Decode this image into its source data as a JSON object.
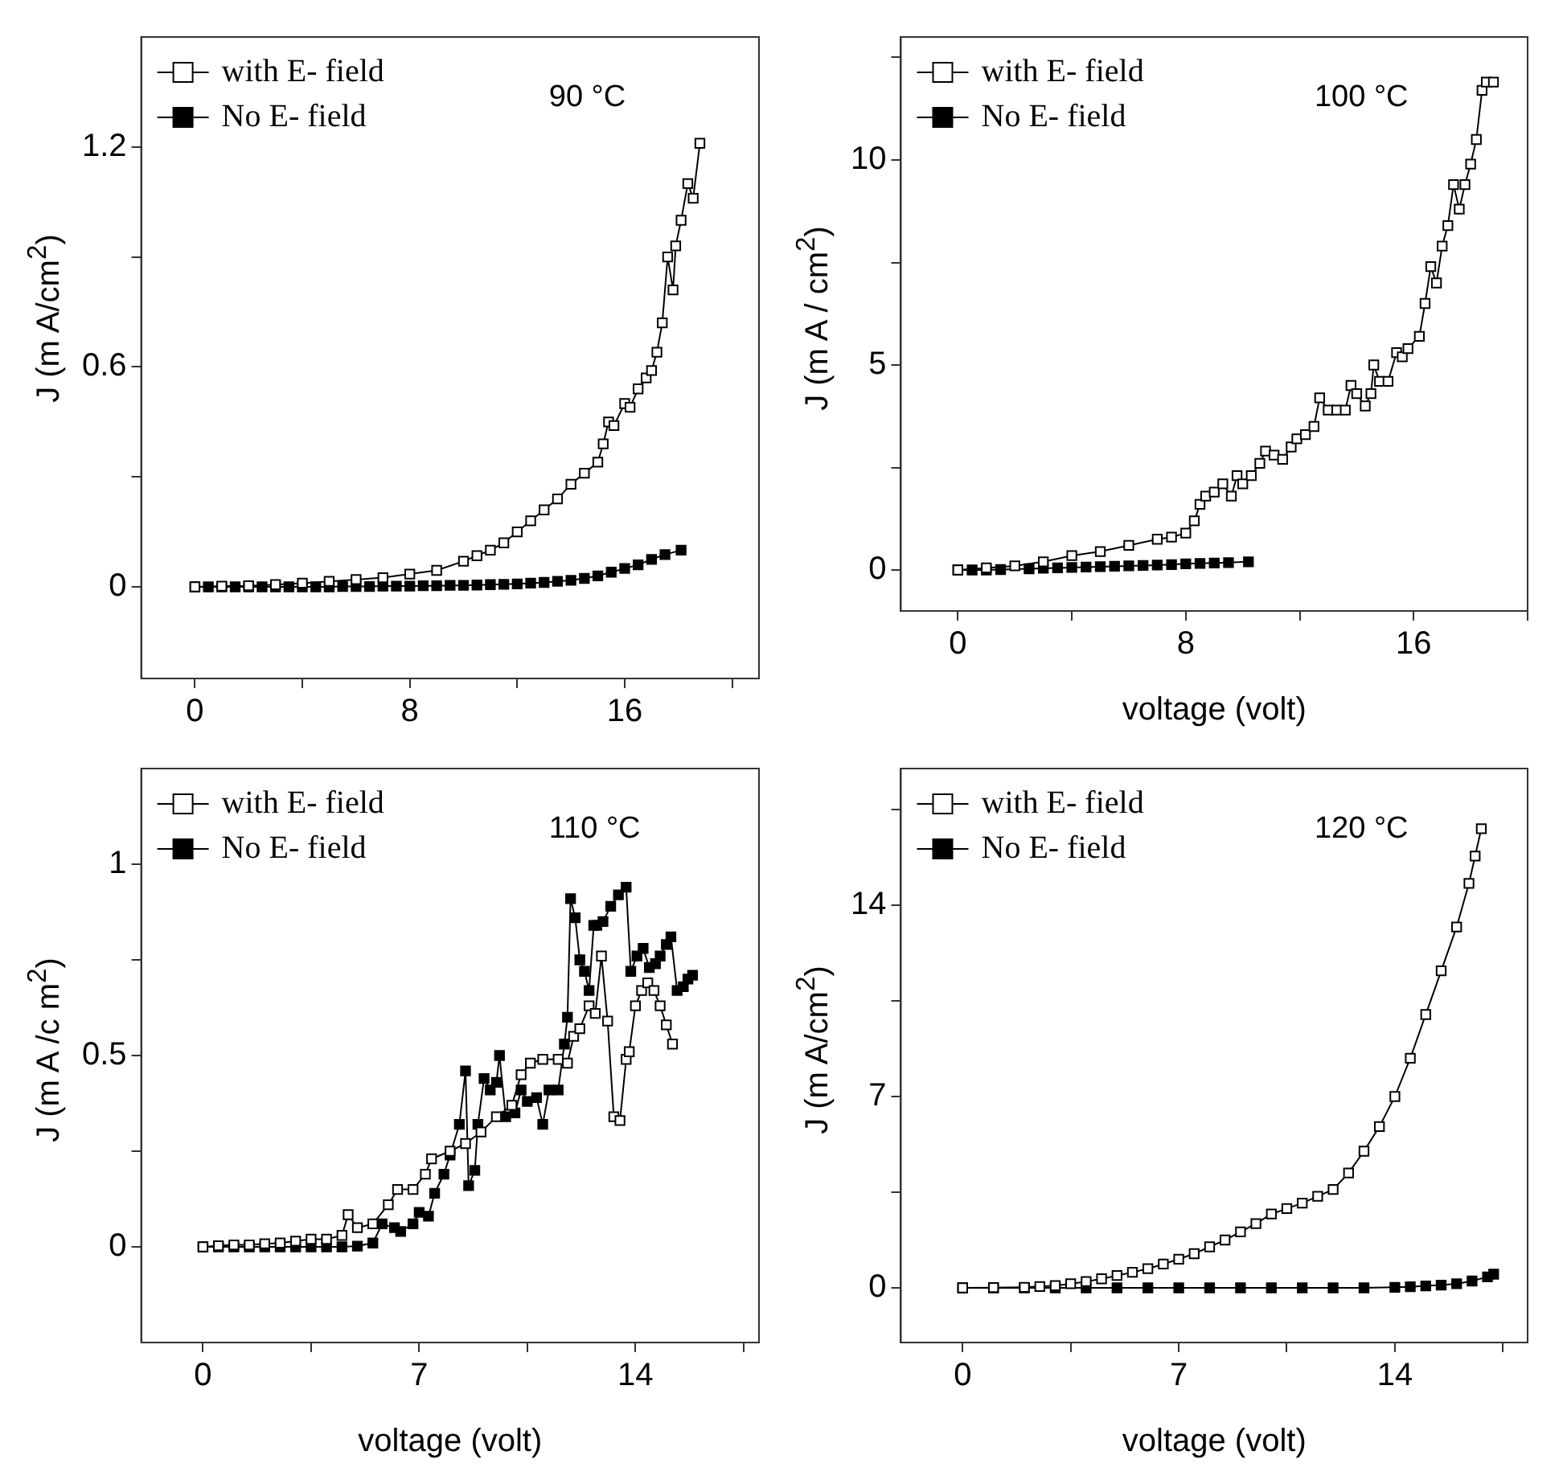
{
  "chart_data": [
    {
      "type": "line",
      "ylabel": "J (m A/cm$^{2}$)",
      "annotations": [
        "90 °C"
      ],
      "legend": "top left",
      "marker": "square",
      "line_style": "solid",
      "xlim": [
        -2,
        21
      ],
      "xticks": [
        0,
        {
          "value": 4,
          "label": null
        },
        8,
        {
          "value": 12,
          "label": null
        },
        16,
        {
          "value": 20,
          "label": null
        }
      ],
      "ylim": [
        -0.25,
        1.5
      ],
      "yticks": [
        0,
        {
          "value": 0.3,
          "label": null
        },
        0.6,
        {
          "value": 0.9,
          "label": null
        },
        1.2
      ],
      "series": [
        {
          "name": "with E- field",
          "color": "#ffffff",
          "x": [
            0,
            1,
            2,
            3,
            4,
            5,
            6,
            7,
            8,
            9,
            10,
            10.5,
            11,
            11.5,
            12,
            12.5,
            13,
            13.5,
            14,
            14.5,
            15,
            15.2,
            15.4,
            15.6,
            16,
            16.2,
            16.5,
            16.8,
            17,
            17.2,
            17.4,
            17.6,
            17.8,
            17.9,
            18.1,
            18.35,
            18.55,
            18.8
          ],
          "values": [
            0,
            0.002,
            0.003,
            0.006,
            0.01,
            0.015,
            0.02,
            0.025,
            0.035,
            0.045,
            0.07,
            0.085,
            0.1,
            0.12,
            0.15,
            0.18,
            0.21,
            0.24,
            0.28,
            0.31,
            0.34,
            0.39,
            0.45,
            0.44,
            0.5,
            0.49,
            0.54,
            0.57,
            0.59,
            0.64,
            0.72,
            0.9,
            0.81,
            0.93,
            1.0,
            1.1,
            1.06,
            1.21
          ]
        },
        {
          "name": "No E- field",
          "color": "#000000",
          "x": [
            0,
            0.5,
            1,
            1.5,
            2,
            2.5,
            3,
            3.5,
            4,
            4.5,
            5,
            5.5,
            6,
            6.5,
            7,
            7.5,
            8,
            8.5,
            9,
            9.5,
            10,
            10.5,
            11,
            11.5,
            12,
            12.5,
            13,
            13.5,
            14,
            14.5,
            15,
            15.5,
            16,
            16.5,
            17,
            17.5,
            18.1
          ],
          "values": [
            0,
            0,
            0,
            0,
            0,
            0,
            0,
            0,
            0,
            0,
            0,
            0.001,
            0.001,
            0.001,
            0.002,
            0.002,
            0.002,
            0.003,
            0.003,
            0.004,
            0.004,
            0.005,
            0.006,
            0.007,
            0.008,
            0.01,
            0.012,
            0.015,
            0.018,
            0.023,
            0.03,
            0.04,
            0.05,
            0.06,
            0.075,
            0.088,
            0.1
          ]
        }
      ]
    },
    {
      "type": "line",
      "xlabel": "voltage (volt)",
      "ylabel": "J (m A / cm$^{2}$)",
      "annotations": [
        "100 °C"
      ],
      "legend": "top left",
      "marker": "square",
      "line_style": "solid",
      "xlim": [
        -2,
        20
      ],
      "xticks": [
        0,
        {
          "value": 4,
          "label": null
        },
        8,
        {
          "value": 12,
          "label": null
        },
        16,
        {
          "value": 20,
          "label": null
        }
      ],
      "ylim": [
        -1,
        13
      ],
      "yticks": [
        0,
        {
          "value": 2.5,
          "label": null
        },
        5,
        {
          "value": 7.5,
          "label": null
        },
        10,
        {
          "value": 12.5,
          "label": null
        }
      ],
      "series": [
        {
          "name": "with E- field",
          "color": "#ffffff",
          "x": [
            0,
            1,
            2,
            3,
            4,
            5,
            6,
            7,
            7.5,
            8,
            8.3,
            8.5,
            8.7,
            9,
            9.3,
            9.6,
            9.8,
            10,
            10.3,
            10.6,
            10.8,
            11.1,
            11.4,
            11.7,
            11.9,
            12.2,
            12.5,
            12.7,
            13,
            13.3,
            13.6,
            13.8,
            14,
            14.3,
            14.5,
            14.6,
            14.8,
            15.1,
            15.4,
            15.6,
            15.8,
            16.2,
            16.4,
            16.6,
            16.8,
            17,
            17.2,
            17.4,
            17.6,
            17.8,
            18,
            18.2,
            18.4,
            18.55,
            18.8
          ],
          "values": [
            0,
            0.05,
            0.1,
            0.2,
            0.35,
            0.45,
            0.6,
            0.75,
            0.8,
            0.9,
            1.2,
            1.6,
            1.8,
            1.9,
            2.1,
            1.8,
            2.3,
            2.1,
            2.3,
            2.6,
            2.9,
            2.8,
            2.7,
            3.0,
            3.2,
            3.3,
            3.5,
            4.2,
            3.9,
            3.9,
            3.9,
            4.5,
            4.3,
            4.0,
            4.3,
            5.0,
            4.6,
            4.6,
            5.3,
            5.2,
            5.4,
            5.7,
            6.5,
            7.4,
            7.0,
            7.9,
            8.4,
            9.4,
            8.8,
            9.4,
            9.9,
            10.5,
            11.7,
            11.9,
            11.9
          ]
        },
        {
          "name": "No E- field",
          "color": "#000000",
          "x": [
            0,
            0.5,
            1,
            1.5,
            2,
            2.5,
            3,
            3.5,
            4,
            4.5,
            5,
            5.5,
            6,
            6.5,
            7,
            7.5,
            8,
            8.5,
            9,
            9.5,
            10.2
          ],
          "values": [
            0,
            0,
            0,
            0.01,
            null,
            0.03,
            0.04,
            0.05,
            0.06,
            0.07,
            0.08,
            0.09,
            0.1,
            0.11,
            0.12,
            0.13,
            0.15,
            0.16,
            0.17,
            0.18,
            0.2
          ]
        }
      ]
    },
    {
      "type": "line",
      "xlabel": "voltage (volt)",
      "ylabel": "J (m A /c m$^{2}$)",
      "annotations": [
        "110 °C"
      ],
      "legend": "top left",
      "marker": "square",
      "line_style": "solid",
      "xlim": [
        -2,
        18
      ],
      "xticks": [
        0,
        {
          "value": 3.5,
          "label": null
        },
        7,
        {
          "value": 10.5,
          "label": null
        },
        14,
        {
          "value": 17.5,
          "label": null
        }
      ],
      "ylim": [
        -0.25,
        1.25
      ],
      "yticks": [
        0,
        {
          "value": 0.25,
          "label": null
        },
        0.5,
        {
          "value": 0.75,
          "label": null
        },
        1.0
      ],
      "series": [
        {
          "name": "with E- field",
          "color": "#ffffff",
          "x": [
            0,
            0.5,
            1,
            1.5,
            2,
            2.5,
            3,
            3.5,
            4,
            4.5,
            4.7,
            5,
            5.5,
            6,
            6.3,
            6.8,
            7.2,
            7.4,
            8,
            8.5,
            9,
            9.5,
            10,
            10.3,
            10.6,
            11,
            11.5,
            11.8,
            12,
            12.2,
            12.5,
            12.7,
            12.9,
            13.1,
            13.3,
            13.5,
            13.7,
            13.8,
            14,
            14.2,
            14.4,
            14.6,
            14.8,
            15,
            15.2
          ],
          "values": [
            0,
            0.003,
            0.005,
            0.005,
            0.008,
            0.01,
            0.015,
            0.02,
            0.02,
            0.03,
            0.084,
            0.05,
            0.06,
            0.11,
            0.15,
            0.15,
            0.19,
            0.23,
            0.25,
            0.27,
            0.3,
            0.34,
            0.37,
            0.45,
            0.48,
            0.49,
            0.49,
            0.48,
            0.55,
            0.57,
            0.63,
            0.61,
            0.76,
            0.59,
            0.34,
            0.33,
            0.49,
            0.51,
            0.63,
            0.67,
            0.69,
            0.67,
            0.63,
            0.58,
            0.53
          ]
        },
        {
          "name": "No E- field",
          "color": "#000000",
          "x": [
            0,
            0.5,
            1,
            1.5,
            2,
            2.5,
            3,
            3.5,
            4,
            4.5,
            5,
            5.5,
            5.8,
            6.2,
            6.4,
            6.8,
            7,
            7.3,
            7.5,
            7.8,
            8,
            8.3,
            8.5,
            8.6,
            8.8,
            8.9,
            9.1,
            9.3,
            9.5,
            9.6,
            9.8,
            10.1,
            10.3,
            10.5,
            10.8,
            11,
            11.2,
            11.5,
            11.7,
            11.8,
            11.9,
            12.05,
            12.2,
            12.35,
            12.5,
            12.65,
            12.75,
            12.95,
            13.2,
            13.45,
            13.7,
            13.85,
            14.05,
            14.25,
            14.45,
            14.65,
            14.8,
            15,
            15.15,
            15.35,
            15.55,
            15.7,
            15.85
          ],
          "values": [
            0,
            0,
            0,
            0,
            0,
            0,
            0,
            0,
            0,
            0,
            0.002,
            0.01,
            0.06,
            0.05,
            0.04,
            0.06,
            0.09,
            0.08,
            0.14,
            0.19,
            0.24,
            0.32,
            0.46,
            0.16,
            0.2,
            0.32,
            0.44,
            0.41,
            0.43,
            0.5,
            0.34,
            0.35,
            0.41,
            0.38,
            0.39,
            0.32,
            0.41,
            0.41,
            0.53,
            0.6,
            0.91,
            0.86,
            0.75,
            0.72,
            0.67,
            0.84,
            0.84,
            0.85,
            0.89,
            0.92,
            0.94,
            0.72,
            0.76,
            0.78,
            0.73,
            0.74,
            0.76,
            0.79,
            0.81,
            0.67,
            0.68,
            0.7,
            0.71
          ]
        }
      ]
    },
    {
      "type": "line",
      "xlabel": "voltage (volt)",
      "ylabel": "J (m A/cm$^{2}$)",
      "annotations": [
        "120 °C"
      ],
      "legend": "top left",
      "marker": "square",
      "line_style": "solid",
      "xlim": [
        -2,
        18.3
      ],
      "xticks": [
        0,
        {
          "value": 3.5,
          "label": null
        },
        7,
        {
          "value": 10.5,
          "label": null
        },
        14,
        {
          "value": 17.5,
          "label": null
        }
      ],
      "ylim": [
        -2,
        19
      ],
      "yticks": [
        0,
        {
          "value": 3.5,
          "label": null
        },
        7,
        {
          "value": 10.5,
          "label": null
        },
        14,
        {
          "value": 17.5,
          "label": null
        }
      ],
      "series": [
        {
          "name": "with E- field",
          "color": "#ffffff",
          "x": [
            0,
            1,
            2,
            2.5,
            3,
            3.5,
            4,
            4.5,
            5,
            5.5,
            6,
            6.5,
            7,
            7.5,
            8,
            8.5,
            9,
            9.5,
            10,
            10.5,
            11,
            11.5,
            12,
            12.5,
            13,
            13.5,
            14,
            14.5,
            15,
            15.5,
            16,
            16.4,
            16.6,
            16.8
          ],
          "values": [
            0,
            0.01,
            0.02,
            0.05,
            0.08,
            0.15,
            0.23,
            0.33,
            0.45,
            0.57,
            0.7,
            0.87,
            1.05,
            1.25,
            1.5,
            1.75,
            2.05,
            2.35,
            2.7,
            2.9,
            3.1,
            3.35,
            3.6,
            4.2,
            5.0,
            5.9,
            7,
            8.4,
            10,
            11.6,
            13.2,
            14.8,
            15.8,
            16.8
          ]
        },
        {
          "name": "No E- field",
          "color": "#000000",
          "x": [
            0,
            1,
            2,
            3,
            4,
            5,
            6,
            7,
            8,
            9,
            10,
            11,
            12,
            13,
            14,
            14.5,
            15,
            15.5,
            16,
            16.5,
            17,
            17.2
          ],
          "values": [
            0,
            0,
            0,
            0,
            0,
            0,
            0,
            0,
            0,
            0,
            0,
            0,
            0,
            0,
            0.02,
            0.04,
            0.07,
            0.1,
            0.15,
            0.25,
            0.4,
            0.5
          ]
        }
      ]
    }
  ]
}
